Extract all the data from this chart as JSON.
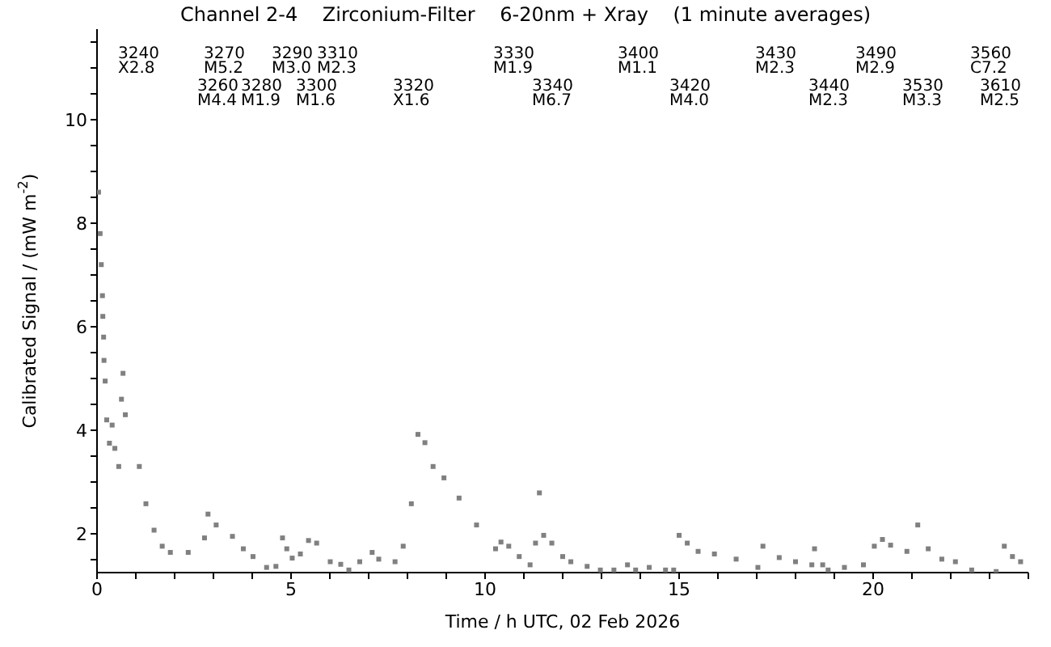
{
  "chart_data": {
    "type": "scatter",
    "title": "Channel 2-4    Zirconium-Filter    6-20nm + Xray    (1 minute averages)",
    "xlabel": "Time / h UTC, 02 Feb 2026",
    "ylabel": "Calibrated Signal / (mW m$^{-2}$)",
    "x": [
      0.04,
      0.08,
      0.11,
      0.14,
      0.15,
      0.17,
      0.18,
      0.21,
      0.25,
      0.32,
      0.39,
      0.46,
      0.56,
      0.63,
      0.67,
      0.73,
      1.09,
      1.26,
      1.47,
      1.68,
      1.89,
      2.35,
      2.77,
      2.86,
      3.07,
      3.49,
      3.77,
      4.02,
      4.37,
      4.61,
      4.78,
      4.89,
      5.03,
      5.24,
      5.45,
      5.66,
      6.01,
      6.28,
      6.49,
      6.77,
      7.09,
      7.26,
      7.68,
      7.89,
      8.1,
      8.27,
      8.45,
      8.66,
      8.94,
      9.33,
      9.78,
      10.27,
      10.41,
      10.61,
      10.88,
      11.16,
      11.3,
      11.4,
      11.51,
      11.72,
      12.0,
      12.21,
      12.63,
      12.97,
      13.32,
      13.67,
      13.88,
      14.23,
      14.65,
      14.86,
      15.0,
      15.21,
      15.49,
      15.91,
      16.47,
      17.03,
      17.16,
      17.58,
      18.0,
      18.42,
      18.49,
      18.7,
      18.84,
      19.26,
      19.75,
      20.03,
      20.24,
      20.45,
      20.87,
      21.15,
      21.42,
      21.77,
      22.12,
      22.54,
      23.17,
      23.38,
      23.59,
      23.8
    ],
    "series": [
      {
        "color": "#808080",
        "values": [
          8.6,
          7.8,
          7.2,
          6.6,
          6.2,
          5.8,
          5.35,
          4.95,
          4.2,
          3.75,
          4.1,
          3.65,
          3.3,
          4.6,
          5.1,
          4.3,
          3.3,
          2.58,
          2.07,
          1.76,
          1.64,
          1.64,
          1.92,
          2.38,
          2.17,
          1.95,
          1.71,
          1.56,
          1.35,
          1.37,
          1.92,
          1.71,
          1.53,
          1.61,
          1.87,
          1.82,
          1.46,
          1.41,
          1.3,
          1.46,
          1.64,
          1.51,
          1.46,
          1.76,
          2.58,
          3.92,
          3.76,
          3.3,
          3.08,
          2.69,
          2.17,
          1.71,
          1.84,
          1.76,
          1.56,
          1.4,
          1.82,
          2.79,
          1.97,
          1.82,
          1.56,
          1.46,
          1.37,
          1.3,
          1.3,
          1.4,
          1.3,
          1.35,
          1.3,
          1.3,
          1.97,
          1.82,
          1.66,
          1.61,
          1.51,
          1.35,
          1.76,
          1.54,
          1.46,
          1.4,
          1.71,
          1.4,
          1.3,
          1.35,
          1.4,
          1.76,
          1.89,
          1.78,
          1.66,
          2.17,
          1.71,
          1.51,
          1.46,
          1.3,
          1.27,
          1.76,
          1.56,
          1.46
        ]
      }
    ],
    "marker": "square",
    "grid": false,
    "legend": false,
    "xlim": [
      0,
      24
    ],
    "ylim": [
      1.25,
      11.75
    ],
    "xticks": [
      0,
      {
        "value": 1,
        "label": null
      },
      {
        "value": 2,
        "label": null
      },
      {
        "value": 3,
        "label": null
      },
      {
        "value": 4,
        "label": null
      },
      5,
      {
        "value": 6,
        "label": null
      },
      {
        "value": 7,
        "label": null
      },
      {
        "value": 8,
        "label": null
      },
      {
        "value": 9,
        "label": null
      },
      10,
      {
        "value": 11,
        "label": null
      },
      {
        "value": 12,
        "label": null
      },
      {
        "value": 13,
        "label": null
      },
      {
        "value": 14,
        "label": null
      },
      15,
      {
        "value": 16,
        "label": null
      },
      {
        "value": 17,
        "label": null
      },
      {
        "value": 18,
        "label": null
      },
      {
        "value": 19,
        "label": null
      },
      20,
      {
        "value": 21,
        "label": null
      },
      {
        "value": 22,
        "label": null
      },
      {
        "value": 23,
        "label": null
      },
      {
        "value": 24,
        "label": null
      }
    ],
    "yticks": [
      {
        "value": 1.5,
        "label": null
      },
      2,
      {
        "value": 2.5,
        "label": null
      },
      {
        "value": 3,
        "label": null
      },
      {
        "value": 3.5,
        "label": null
      },
      4,
      {
        "value": 4.5,
        "label": null
      },
      {
        "value": 5,
        "label": null
      },
      {
        "value": 5.5,
        "label": null
      },
      6,
      {
        "value": 6.5,
        "label": null
      },
      {
        "value": 7,
        "label": null
      },
      {
        "value": 7.5,
        "label": null
      },
      8,
      {
        "value": 8.5,
        "label": null
      },
      {
        "value": 9,
        "label": null
      },
      {
        "value": 9.5,
        "label": null
      },
      10,
      {
        "value": 10.5,
        "label": null
      },
      {
        "value": 11,
        "label": null
      },
      {
        "value": 11.5,
        "label": null
      }
    ],
    "annotations": [
      "3240\nX2.8",
      "3260\nM4.4",
      "3270\nM5.2",
      "3280\nM1.9",
      "3290\nM3.0",
      "3300\nM1.6",
      "3310\nM2.3",
      "3320\nX1.6",
      "3330\nM1.9",
      "3340\nM6.7",
      "3400\nM1.1",
      "3420\nM4.0",
      "3430\nM2.3",
      "3440\nM2.3",
      "3490\nM2.9",
      "3530\nM3.3",
      "3560\nC7.2",
      "3610\nM2.5"
    ]
  }
}
